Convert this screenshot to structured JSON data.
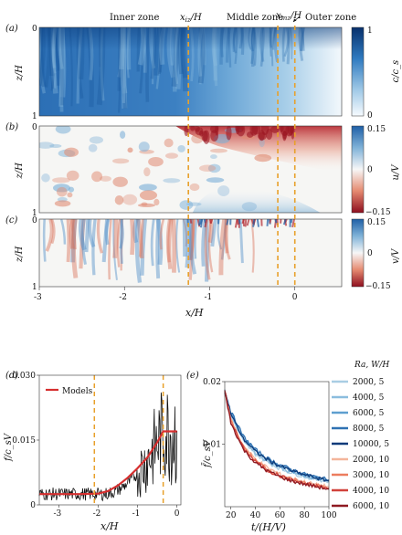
{
  "top_panels": {
    "zones": {
      "inner": "Inner zone",
      "middle": "Middle zone",
      "outer": "Outer zone"
    },
    "markers": {
      "xiz": "x_{iz}/H",
      "xmz": "x_{mz}/H"
    },
    "marker_positions": {
      "xiz": -1.25,
      "xmz": -0.2,
      "zero": 0.0
    },
    "xaxis": {
      "label": "x/H",
      "ticks": [
        "-3",
        "-2",
        "-1",
        "0"
      ],
      "range": [
        -3.0,
        0.55
      ]
    },
    "ylabel": "z/H",
    "panels": [
      {
        "tag": "(a)",
        "cb_label": "c/c_s",
        "cb_ticks": [
          "1",
          "0"
        ],
        "cb_range": [
          0,
          1
        ],
        "y_ticks": [
          "0",
          "1"
        ]
      },
      {
        "tag": "(b)",
        "cb_label": "u/V",
        "cb_ticks": [
          "0.15",
          "0",
          "−0.15"
        ],
        "cb_range": [
          -0.15,
          0.15
        ],
        "y_ticks": [
          "0",
          "1"
        ]
      },
      {
        "tag": "(c)",
        "cb_label": "v/V",
        "cb_ticks": [
          "0.15",
          "0",
          "−0.15"
        ],
        "cb_range": [
          -0.15,
          0.15
        ],
        "y_ticks": [
          "0",
          "1"
        ]
      }
    ]
  },
  "panel_d": {
    "tag": "(d)",
    "xlabel": "x/H",
    "ylabel": "f/c_sV",
    "xticks": [
      "-3",
      "-2",
      "-1",
      "0"
    ],
    "yticks": [
      "0",
      "0.015",
      "0.030"
    ],
    "legend": "Models",
    "vlines": [
      -2.1,
      -0.35
    ]
  },
  "panel_e": {
    "tag": "(e)",
    "xlabel": "t/(H/V)",
    "ylabel": "f̄/c_sV",
    "xticks": [
      "20",
      "40",
      "60",
      "80",
      "100"
    ],
    "yticks": [
      "0.01",
      "0.02"
    ],
    "legend_title": "Ra, W/H",
    "legend": [
      {
        "label": "2000, 5",
        "color": "#a9cde3"
      },
      {
        "label": "4000, 5",
        "color": "#8bbdde"
      },
      {
        "label": "6000, 5",
        "color": "#5e9fcf"
      },
      {
        "label": "8000, 5",
        "color": "#2f72b3"
      },
      {
        "label": "10000, 5",
        "color": "#0d3b7a"
      },
      {
        "label": "2000, 10",
        "color": "#f4b59b"
      },
      {
        "label": "3000, 10",
        "color": "#ec7d5f"
      },
      {
        "label": "4000, 10",
        "color": "#d1423b"
      },
      {
        "label": "6000, 10",
        "color": "#8f1a22"
      }
    ]
  },
  "chart_data": [
    {
      "type": "line",
      "title": "(d)",
      "xlabel": "x/H",
      "ylabel": "f/c_sV",
      "xlim": [
        -3.5,
        0.1
      ],
      "ylim": [
        0,
        0.03
      ],
      "series": [
        {
          "name": "Models",
          "x": [
            -3.5,
            -3.0,
            -2.5,
            -2.0,
            -1.75,
            -1.5,
            -1.25,
            -1.0,
            -0.75,
            -0.5,
            -0.35,
            0.0
          ],
          "y": [
            0.0025,
            0.0025,
            0.0025,
            0.0026,
            0.0032,
            0.0045,
            0.0063,
            0.0085,
            0.011,
            0.0145,
            0.017,
            0.017
          ]
        }
      ]
    },
    {
      "type": "line",
      "title": "(e)",
      "xlabel": "t/(H/V)",
      "ylabel": "f̄/c_sV",
      "xlim": [
        15,
        100
      ],
      "ylim": [
        0,
        0.02
      ],
      "x": [
        15,
        20,
        30,
        40,
        50,
        60,
        70,
        80,
        90,
        100
      ],
      "series": [
        {
          "name": "2000, 5",
          "values": [
            0.0185,
            0.0145,
            0.0105,
            0.0084,
            0.0071,
            0.0061,
            0.0054,
            0.0048,
            0.0044,
            0.004
          ]
        },
        {
          "name": "4000, 5",
          "values": [
            0.0185,
            0.0147,
            0.0108,
            0.0087,
            0.0073,
            0.0063,
            0.0055,
            0.0049,
            0.0045,
            0.0041
          ]
        },
        {
          "name": "6000, 5",
          "values": [
            0.0185,
            0.015,
            0.011,
            0.0089,
            0.0075,
            0.0065,
            0.0057,
            0.0051,
            0.0046,
            0.0042
          ]
        },
        {
          "name": "8000, 5",
          "values": [
            0.0185,
            0.0152,
            0.0113,
            0.0091,
            0.0077,
            0.0067,
            0.0059,
            0.0052,
            0.0047,
            0.0043
          ]
        },
        {
          "name": "10000, 5",
          "values": [
            0.0185,
            0.0148,
            0.0109,
            0.0088,
            0.0075,
            0.0065,
            0.0057,
            0.0051,
            0.0046,
            0.0041
          ]
        },
        {
          "name": "2000, 10",
          "values": [
            0.0185,
            0.014,
            0.0098,
            0.0076,
            0.0062,
            0.0052,
            0.0045,
            0.004,
            0.0035,
            0.0032
          ]
        },
        {
          "name": "3000, 10",
          "values": [
            0.0185,
            0.0138,
            0.0096,
            0.0074,
            0.006,
            0.005,
            0.0043,
            0.0038,
            0.0034,
            0.003
          ]
        },
        {
          "name": "4000, 10",
          "values": [
            0.0185,
            0.0136,
            0.0094,
            0.0072,
            0.0058,
            0.0049,
            0.0042,
            0.0037,
            0.0033,
            0.0029
          ]
        },
        {
          "name": "6000, 10",
          "values": [
            0.0185,
            0.0134,
            0.0092,
            0.007,
            0.0057,
            0.0048,
            0.0041,
            0.0036,
            0.0032,
            0.0028
          ]
        }
      ]
    }
  ]
}
